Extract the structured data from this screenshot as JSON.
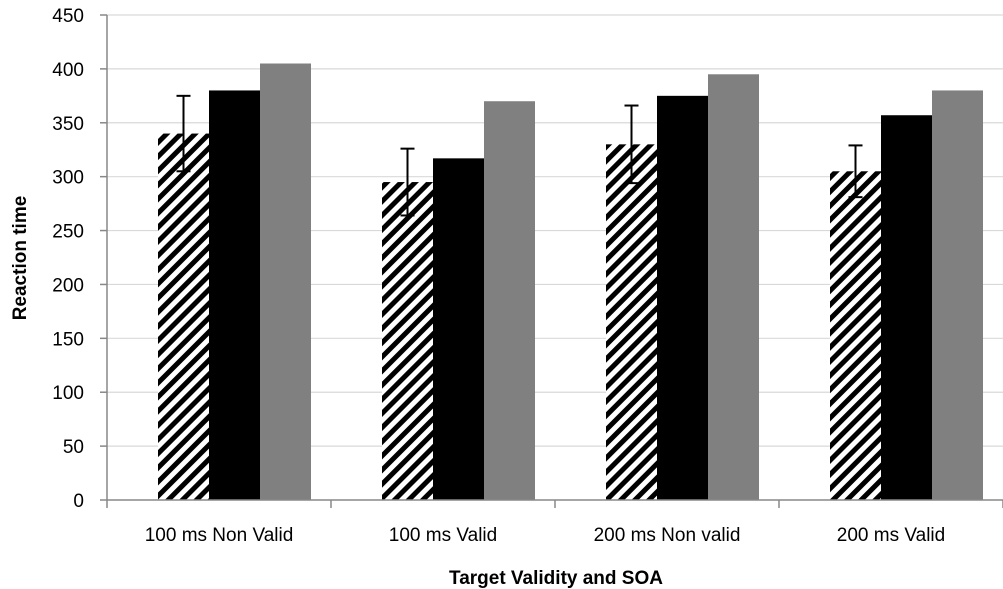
{
  "chart_data": {
    "type": "bar",
    "title": "",
    "xlabel": "Target Validity and SOA",
    "ylabel": "Reaction time",
    "ylim": [
      0,
      450
    ],
    "yticks": [
      0,
      50,
      100,
      150,
      200,
      250,
      300,
      350,
      400,
      450
    ],
    "grid": true,
    "legend": "none",
    "categories": [
      "100 ms Non Valid",
      "100 ms Valid",
      "200 ms Non valid",
      "200 ms Valid"
    ],
    "series": [
      {
        "values": [
          340,
          295,
          330,
          305
        ],
        "errors": [
          35,
          31,
          36,
          24
        ],
        "fill": "diagonal-hatch"
      },
      {
        "values": [
          380,
          317,
          375,
          357
        ],
        "color": "#000000"
      },
      {
        "values": [
          405,
          370,
          395,
          380
        ],
        "color": "#808080"
      }
    ]
  }
}
